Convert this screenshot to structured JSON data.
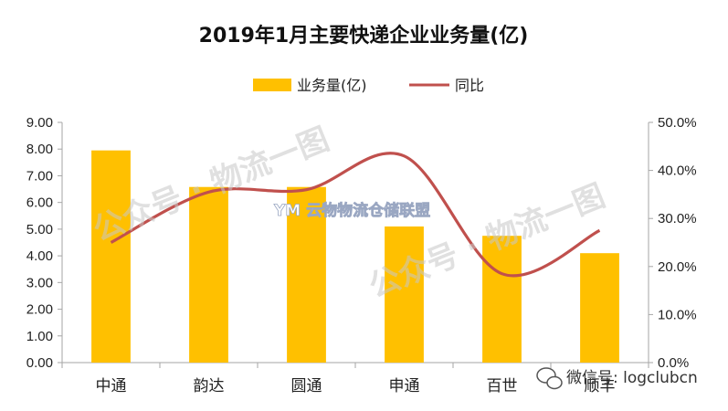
{
  "chart_data": {
    "type": "bar",
    "title": "2019年1月主要快递企业业务量(亿)",
    "categories": [
      "中通",
      "韵达",
      "圆通",
      "申通",
      "百世",
      "顺丰"
    ],
    "series": [
      {
        "name": "业务量(亿)",
        "type": "bar",
        "axis": "left",
        "values": [
          7.95,
          6.58,
          6.58,
          5.1,
          4.75,
          4.1
        ]
      },
      {
        "name": "同比",
        "type": "line",
        "axis": "right",
        "smooth": true,
        "values": [
          25,
          35.5,
          36,
          43,
          18.5,
          27.5
        ]
      }
    ],
    "y_left": {
      "min": 0,
      "max": 9,
      "step": 1,
      "tick_labels": [
        "0.00",
        "1.00",
        "2.00",
        "3.00",
        "4.00",
        "5.00",
        "6.00",
        "7.00",
        "8.00",
        "9.00"
      ]
    },
    "y_right": {
      "min": 0,
      "max": 50,
      "step": 10,
      "tick_labels": [
        "0.0%",
        "10.0%",
        "20.0%",
        "30.0%",
        "40.0%",
        "50.0%"
      ]
    },
    "legend_position": "top",
    "grid": false,
    "colors": {
      "bar": "#FFC000",
      "line": "#C0504D",
      "axis": "#a6a6a6"
    }
  },
  "watermarks": {
    "gongzhonghao_1": "公众号 · 物流一图",
    "gongzhonghao_2": "公众号 · 物流一图",
    "logo_text": "YM 云物物流仓储联盟",
    "wechat": "微信号: logclubcn"
  }
}
